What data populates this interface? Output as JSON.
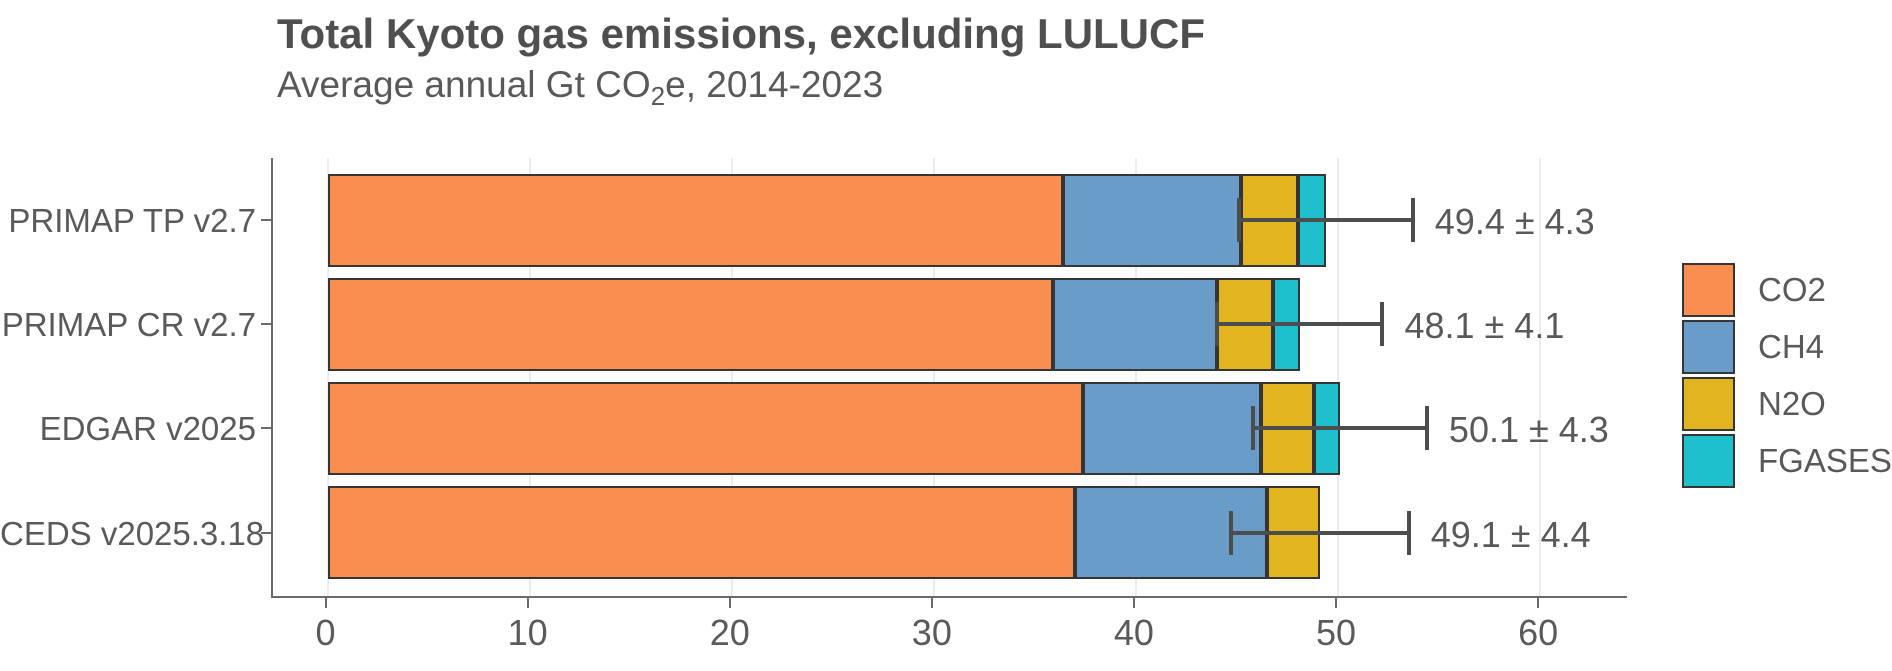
{
  "title": "Total Kyoto gas emissions, excluding LULUCF",
  "subtitle": {
    "prefix": "Average annual Gt CO",
    "sub": "2",
    "suffix": "e, 2014-2023"
  },
  "chart_data": {
    "type": "bar",
    "orientation": "horizontal",
    "stacked": true,
    "title": "Total Kyoto gas emissions, excluding LULUCF",
    "subtitle": "Average annual Gt CO2e, 2014-2023",
    "categories": [
      "PRIMAP TP v2.7",
      "PRIMAP CR v2.7",
      "EDGAR v2025",
      "CEDS v2025.3.18"
    ],
    "series": [
      {
        "name": "CO2",
        "color": "#fa8e51",
        "values": [
          36.4,
          35.9,
          37.4,
          37.0
        ]
      },
      {
        "name": "CH4",
        "color": "#6a9cca",
        "values": [
          8.8,
          8.1,
          8.8,
          9.5
        ]
      },
      {
        "name": "N2O",
        "color": "#e1b420",
        "values": [
          2.8,
          2.8,
          2.6,
          2.6
        ]
      },
      {
        "name": "FGASES",
        "color": "#1ec0cd",
        "values": [
          1.4,
          1.3,
          1.3,
          0.0
        ]
      }
    ],
    "totals": [
      49.4,
      48.1,
      50.1,
      49.1
    ],
    "errors": [
      4.3,
      4.1,
      4.3,
      4.4
    ],
    "error_labels": [
      "49.4 ± 4.3",
      "48.1 ± 4.1",
      "50.1 ± 4.3",
      "49.1 ± 4.4"
    ],
    "xticks": [
      0,
      10,
      20,
      30,
      40,
      50,
      60
    ],
    "xtick_labels": [
      "0",
      "10",
      "20",
      "30",
      "40",
      "50",
      "60"
    ],
    "xlim": [
      -2.7,
      64.3
    ],
    "grid": "vertical-major",
    "legend_position": "right",
    "legend": [
      "CO2",
      "CH4",
      "N2O",
      "FGASES"
    ],
    "bar_border_color": "#353535",
    "errorbar_color": "#4d4d4d",
    "axis_color": "#6a6a6a",
    "text_color": "#595959"
  }
}
